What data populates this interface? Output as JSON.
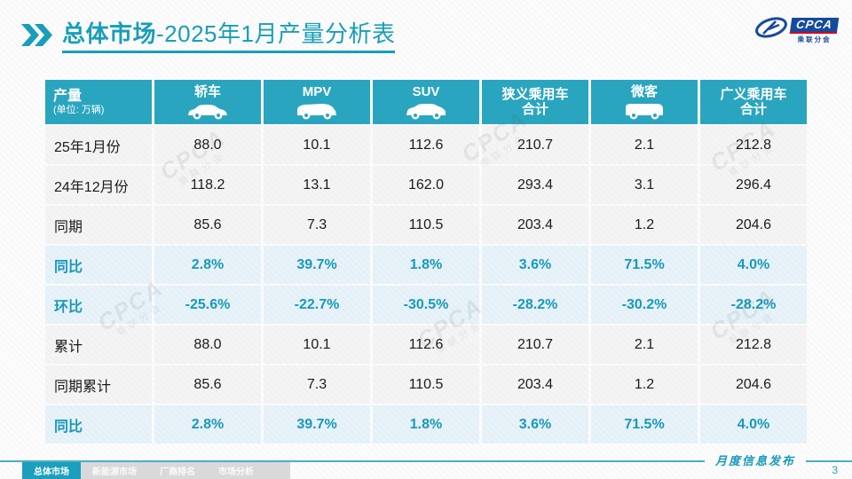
{
  "title": {
    "highlight": "总体市场",
    "rest": "-2025年1月产量分析表"
  },
  "logo": {
    "text": "CPCA",
    "subtext": "乘联分会"
  },
  "watermark": {
    "text": "CPCA",
    "subtext": "乘联分会"
  },
  "table": {
    "corner": {
      "title": "产量",
      "unit": "(单位: 万辆)"
    },
    "columns": [
      {
        "label": "轿车",
        "icon": "sedan-icon"
      },
      {
        "label": "MPV",
        "icon": "mpv-icon"
      },
      {
        "label": "SUV",
        "icon": "suv-icon"
      },
      {
        "label": "狭义乘用车\n合计",
        "icon": null
      },
      {
        "label": "微客",
        "icon": "microvan-icon"
      },
      {
        "label": "广义乘用车\n合计",
        "icon": null
      }
    ],
    "rows": [
      {
        "label": "25年1月份",
        "type": "normal",
        "values": [
          "88.0",
          "10.1",
          "112.6",
          "210.7",
          "2.1",
          "212.8"
        ]
      },
      {
        "label": "24年12月份",
        "type": "normal",
        "values": [
          "118.2",
          "13.1",
          "162.0",
          "293.4",
          "3.1",
          "296.4"
        ]
      },
      {
        "label": "同期",
        "type": "normal",
        "values": [
          "85.6",
          "7.3",
          "110.5",
          "203.4",
          "1.2",
          "204.6"
        ]
      },
      {
        "label": "同比",
        "type": "percent",
        "values": [
          "2.8%",
          "39.7%",
          "1.8%",
          "3.6%",
          "71.5%",
          "4.0%"
        ]
      },
      {
        "label": "环比",
        "type": "percent",
        "values": [
          "-25.6%",
          "-22.7%",
          "-30.5%",
          "-28.2%",
          "-30.2%",
          "-28.2%"
        ]
      },
      {
        "label": "累计",
        "type": "normal",
        "values": [
          "88.0",
          "10.1",
          "112.6",
          "210.7",
          "2.1",
          "212.8"
        ]
      },
      {
        "label": "同期累计",
        "type": "normal",
        "values": [
          "85.6",
          "7.3",
          "110.5",
          "203.4",
          "1.2",
          "204.6"
        ]
      },
      {
        "label": "同比",
        "type": "percent",
        "values": [
          "2.8%",
          "39.7%",
          "1.8%",
          "3.6%",
          "71.5%",
          "4.0%"
        ]
      }
    ]
  },
  "footer": {
    "tabs": [
      {
        "label": "总体市场",
        "active": true
      },
      {
        "label": "新能源市场",
        "active": false
      },
      {
        "label": "厂商排名",
        "active": false
      },
      {
        "label": "市场分析",
        "active": false
      }
    ],
    "publish_label": "月度信息发布",
    "page_number": "3"
  },
  "colors": {
    "accent_teal": "#189EB9",
    "header_teal": "#2AA5BF",
    "percent_row_bg": "#E7F2F9",
    "logo_blue": "#164A9B",
    "logo_red": "#D6001C"
  }
}
